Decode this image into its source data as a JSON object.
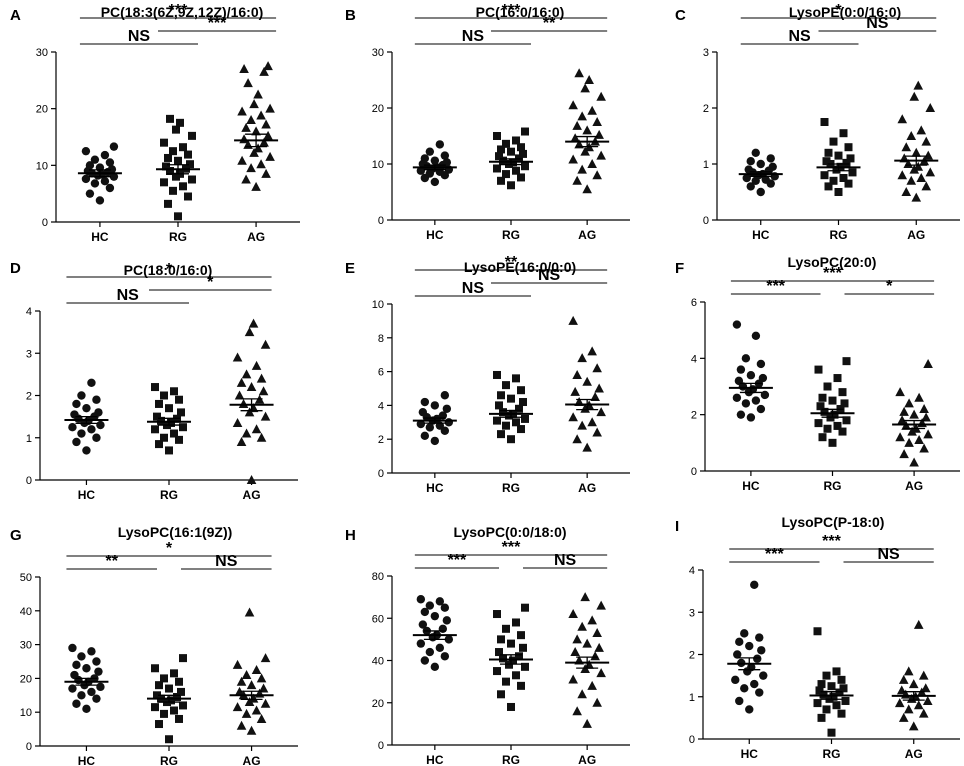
{
  "figure": {
    "categories": [
      "HC",
      "RG",
      "AG"
    ]
  },
  "chart_data": [
    {
      "panel": "A",
      "type": "scatter",
      "title": "PC(18:3(6Z,9Z,12Z)/16:0)",
      "categories": [
        "HC",
        "RG",
        "AG"
      ],
      "ylim": [
        0,
        30
      ],
      "yticks": [
        0,
        10,
        20,
        30
      ],
      "groups": [
        {
          "name": "HC",
          "marker": "circle",
          "mean": 8.6,
          "sem": 0.6,
          "values": [
            3.8,
            5.0,
            6.0,
            6.8,
            7.2,
            7.6,
            8.0,
            8.2,
            8.4,
            8.6,
            8.8,
            9.0,
            9.3,
            9.6,
            10.0,
            10.5,
            11.0,
            11.8,
            12.5,
            13.3
          ]
        },
        {
          "name": "RG",
          "marker": "square",
          "mean": 9.3,
          "sem": 0.8,
          "values": [
            1.0,
            3.2,
            4.5,
            5.5,
            6.3,
            7.0,
            7.5,
            8.0,
            8.5,
            9.0,
            9.4,
            9.8,
            10.2,
            10.8,
            11.3,
            11.9,
            12.5,
            13.2,
            14.0,
            15.2,
            16.3,
            17.5,
            18.2
          ]
        },
        {
          "name": "AG",
          "marker": "triangle",
          "mean": 14.4,
          "sem": 1.1,
          "values": [
            6.2,
            7.5,
            8.5,
            9.5,
            10.2,
            10.8,
            11.5,
            12.2,
            13.0,
            13.6,
            14.0,
            14.6,
            15.2,
            16.0,
            16.6,
            17.2,
            18.0,
            18.8,
            19.5,
            20.0,
            20.8,
            22.5,
            24.5,
            26.5,
            27.0,
            27.5
          ]
        }
      ],
      "comparisons": [
        {
          "from": "HC",
          "to": "RG",
          "label": "NS",
          "level": 1
        },
        {
          "from": "RG",
          "to": "AG",
          "label": "***",
          "level": 2
        },
        {
          "from": "HC",
          "to": "AG",
          "label": "***",
          "level": 3
        }
      ]
    },
    {
      "panel": "B",
      "type": "scatter",
      "title": "PC(16:0/16:0)",
      "categories": [
        "HC",
        "RG",
        "AG"
      ],
      "ylim": [
        0,
        30
      ],
      "yticks": [
        0,
        10,
        20,
        30
      ],
      "groups": [
        {
          "name": "HC",
          "marker": "circle",
          "mean": 9.4,
          "sem": 0.4,
          "values": [
            6.8,
            7.5,
            8.0,
            8.3,
            8.6,
            8.8,
            9.0,
            9.2,
            9.4,
            9.6,
            9.8,
            10.0,
            10.3,
            10.6,
            11.0,
            11.5,
            12.2,
            13.5
          ]
        },
        {
          "name": "RG",
          "marker": "square",
          "mean": 10.4,
          "sem": 0.5,
          "values": [
            6.2,
            7.0,
            7.6,
            8.2,
            8.8,
            9.2,
            9.6,
            10.0,
            10.3,
            10.6,
            11.0,
            11.4,
            11.8,
            12.2,
            12.6,
            13.0,
            13.6,
            14.2,
            15.0,
            15.8
          ]
        },
        {
          "name": "AG",
          "marker": "triangle",
          "mean": 14.0,
          "sem": 0.9,
          "values": [
            5.5,
            7.0,
            8.0,
            9.0,
            10.0,
            10.8,
            11.5,
            12.2,
            13.0,
            13.5,
            14.0,
            14.6,
            15.2,
            16.0,
            16.8,
            17.5,
            18.5,
            19.5,
            20.5,
            22.0,
            23.5,
            25.0,
            26.2
          ]
        }
      ],
      "comparisons": [
        {
          "from": "HC",
          "to": "RG",
          "label": "NS",
          "level": 1
        },
        {
          "from": "RG",
          "to": "AG",
          "label": "**",
          "level": 2
        },
        {
          "from": "HC",
          "to": "AG",
          "label": "***",
          "level": 3
        }
      ]
    },
    {
      "panel": "C",
      "type": "scatter",
      "title": "LysoPE(0:0/16:0)",
      "categories": [
        "HC",
        "RG",
        "AG"
      ],
      "ylim": [
        0,
        3
      ],
      "yticks": [
        0,
        1,
        2,
        3
      ],
      "groups": [
        {
          "name": "HC",
          "marker": "circle",
          "mean": 0.82,
          "sem": 0.04,
          "values": [
            0.5,
            0.6,
            0.65,
            0.7,
            0.72,
            0.75,
            0.78,
            0.8,
            0.82,
            0.85,
            0.88,
            0.9,
            0.95,
            1.0,
            1.05,
            1.1,
            1.2
          ]
        },
        {
          "name": "RG",
          "marker": "square",
          "mean": 0.94,
          "sem": 0.06,
          "values": [
            0.5,
            0.6,
            0.65,
            0.7,
            0.75,
            0.8,
            0.85,
            0.9,
            0.95,
            1.0,
            1.02,
            1.05,
            1.1,
            1.15,
            1.2,
            1.3,
            1.4,
            1.55,
            1.75
          ]
        },
        {
          "name": "AG",
          "marker": "triangle",
          "mean": 1.06,
          "sem": 0.08,
          "values": [
            0.4,
            0.5,
            0.6,
            0.7,
            0.75,
            0.8,
            0.85,
            0.9,
            0.95,
            1.0,
            1.05,
            1.1,
            1.15,
            1.2,
            1.3,
            1.4,
            1.5,
            1.6,
            1.8,
            2.0,
            2.2,
            2.4
          ]
        }
      ],
      "comparisons": [
        {
          "from": "HC",
          "to": "RG",
          "label": "NS",
          "level": 1
        },
        {
          "from": "RG",
          "to": "AG",
          "label": "NS",
          "level": 2
        },
        {
          "from": "HC",
          "to": "AG",
          "label": "*",
          "level": 3
        }
      ]
    },
    {
      "panel": "D",
      "type": "scatter",
      "title": "PC(18:0/16:0)",
      "categories": [
        "HC",
        "RG",
        "AG"
      ],
      "ylim": [
        0,
        4
      ],
      "yticks": [
        0,
        1,
        2,
        3,
        4
      ],
      "groups": [
        {
          "name": "HC",
          "marker": "circle",
          "mean": 1.42,
          "sem": 0.08,
          "values": [
            0.7,
            0.9,
            1.0,
            1.1,
            1.2,
            1.25,
            1.3,
            1.35,
            1.4,
            1.45,
            1.5,
            1.55,
            1.6,
            1.7,
            1.8,
            1.9,
            2.0,
            2.3
          ]
        },
        {
          "name": "RG",
          "marker": "square",
          "mean": 1.38,
          "sem": 0.08,
          "values": [
            0.7,
            0.85,
            0.95,
            1.0,
            1.1,
            1.2,
            1.25,
            1.3,
            1.35,
            1.4,
            1.45,
            1.5,
            1.6,
            1.7,
            1.8,
            1.9,
            2.0,
            2.1,
            2.2
          ]
        },
        {
          "name": "AG",
          "marker": "triangle",
          "mean": 1.78,
          "sem": 0.14,
          "values": [
            0.0,
            0.9,
            1.0,
            1.1,
            1.2,
            1.35,
            1.5,
            1.6,
            1.7,
            1.8,
            1.9,
            2.0,
            2.1,
            2.2,
            2.3,
            2.4,
            2.5,
            2.7,
            2.9,
            3.2,
            3.5,
            3.7
          ]
        }
      ],
      "comparisons": [
        {
          "from": "HC",
          "to": "RG",
          "label": "NS",
          "level": 1
        },
        {
          "from": "RG",
          "to": "AG",
          "label": "*",
          "level": 2
        },
        {
          "from": "HC",
          "to": "AG",
          "label": "*",
          "level": 3
        }
      ]
    },
    {
      "panel": "E",
      "type": "scatter",
      "title": "LysoPE(16:0/0:0)",
      "categories": [
        "HC",
        "RG",
        "AG"
      ],
      "ylim": [
        0,
        10
      ],
      "yticks": [
        0,
        2,
        4,
        6,
        8,
        10
      ],
      "groups": [
        {
          "name": "HC",
          "marker": "circle",
          "mean": 3.1,
          "sem": 0.15,
          "values": [
            1.9,
            2.2,
            2.5,
            2.7,
            2.8,
            2.9,
            3.0,
            3.1,
            3.2,
            3.3,
            3.4,
            3.6,
            3.8,
            4.0,
            4.2,
            4.6
          ]
        },
        {
          "name": "RG",
          "marker": "square",
          "mean": 3.5,
          "sem": 0.2,
          "values": [
            2.0,
            2.3,
            2.6,
            2.8,
            3.0,
            3.1,
            3.2,
            3.4,
            3.5,
            3.6,
            3.8,
            4.0,
            4.2,
            4.4,
            4.6,
            4.9,
            5.2,
            5.6,
            5.8
          ]
        },
        {
          "name": "AG",
          "marker": "triangle",
          "mean": 4.05,
          "sem": 0.3,
          "values": [
            1.5,
            2.0,
            2.4,
            2.8,
            3.0,
            3.3,
            3.6,
            3.8,
            4.0,
            4.2,
            4.5,
            4.8,
            5.0,
            5.4,
            5.8,
            6.2,
            6.8,
            7.2,
            9.0
          ]
        }
      ],
      "comparisons": [
        {
          "from": "HC",
          "to": "RG",
          "label": "NS",
          "level": 1
        },
        {
          "from": "RG",
          "to": "AG",
          "label": "NS",
          "level": 2
        },
        {
          "from": "HC",
          "to": "AG",
          "label": "**",
          "level": 3
        }
      ]
    },
    {
      "panel": "F",
      "type": "scatter",
      "title": "LysoPC(20:0)",
      "categories": [
        "HC",
        "RG",
        "AG"
      ],
      "ylim": [
        0,
        6
      ],
      "yticks": [
        0,
        2,
        4,
        6
      ],
      "groups": [
        {
          "name": "HC",
          "marker": "circle",
          "mean": 2.95,
          "sem": 0.16,
          "values": [
            1.9,
            2.0,
            2.2,
            2.4,
            2.5,
            2.6,
            2.7,
            2.8,
            2.9,
            3.0,
            3.1,
            3.2,
            3.3,
            3.4,
            3.6,
            3.8,
            4.0,
            4.8,
            5.2
          ]
        },
        {
          "name": "RG",
          "marker": "square",
          "mean": 2.05,
          "sem": 0.14,
          "values": [
            1.0,
            1.2,
            1.4,
            1.5,
            1.6,
            1.7,
            1.8,
            1.9,
            2.0,
            2.1,
            2.2,
            2.3,
            2.4,
            2.5,
            2.6,
            2.8,
            3.0,
            3.3,
            3.6,
            3.9
          ]
        },
        {
          "name": "AG",
          "marker": "triangle",
          "mean": 1.65,
          "sem": 0.14,
          "values": [
            0.3,
            0.6,
            0.8,
            1.0,
            1.1,
            1.2,
            1.3,
            1.4,
            1.5,
            1.6,
            1.7,
            1.8,
            1.9,
            2.0,
            2.1,
            2.2,
            2.4,
            2.6,
            2.8,
            3.8
          ]
        }
      ],
      "comparisons": [
        {
          "from": "HC",
          "to": "RG",
          "label": "***",
          "level": 1
        },
        {
          "from": "RG",
          "to": "AG",
          "label": "*",
          "level": 1
        },
        {
          "from": "HC",
          "to": "AG",
          "label": "***",
          "level": 2
        }
      ]
    },
    {
      "panel": "G",
      "type": "scatter",
      "title": "LysoPC(16:1(9Z))",
      "categories": [
        "HC",
        "RG",
        "AG"
      ],
      "ylim": [
        0,
        50
      ],
      "yticks": [
        0,
        10,
        20,
        30,
        40,
        50
      ],
      "groups": [
        {
          "name": "HC",
          "marker": "circle",
          "mean": 19.0,
          "sem": 1.0,
          "values": [
            11.0,
            12.5,
            14.0,
            15.0,
            16.0,
            17.0,
            17.5,
            18.0,
            19.0,
            19.5,
            20.0,
            21.0,
            22.0,
            23.0,
            24.0,
            25.0,
            26.5,
            28.0,
            29.0
          ]
        },
        {
          "name": "RG",
          "marker": "square",
          "mean": 14.0,
          "sem": 1.0,
          "values": [
            2.0,
            6.5,
            8.0,
            9.5,
            10.5,
            11.5,
            12.0,
            13.0,
            13.5,
            14.0,
            14.5,
            15.0,
            16.0,
            17.0,
            18.0,
            19.0,
            20.0,
            21.5,
            23.0,
            26.0
          ]
        },
        {
          "name": "AG",
          "marker": "triangle",
          "mean": 15.0,
          "sem": 1.2,
          "values": [
            4.5,
            6.0,
            8.0,
            9.5,
            10.5,
            11.5,
            12.5,
            13.0,
            14.0,
            15.0,
            15.5,
            16.0,
            17.0,
            18.0,
            19.0,
            20.0,
            21.0,
            22.5,
            24.0,
            26.0,
            39.5
          ]
        }
      ],
      "comparisons": [
        {
          "from": "HC",
          "to": "RG",
          "label": "**",
          "level": 1
        },
        {
          "from": "RG",
          "to": "AG",
          "label": "NS",
          "level": 1
        },
        {
          "from": "HC",
          "to": "AG",
          "label": "*",
          "level": 2
        }
      ]
    },
    {
      "panel": "H",
      "type": "scatter",
      "title": "LysoPC(0:0/18:0)",
      "categories": [
        "HC",
        "RG",
        "AG"
      ],
      "ylim": [
        0,
        80
      ],
      "yticks": [
        0,
        20,
        40,
        60,
        80
      ],
      "groups": [
        {
          "name": "HC",
          "marker": "circle",
          "mean": 52.0,
          "sem": 2.0,
          "values": [
            37.0,
            40.0,
            42.0,
            44.0,
            46.0,
            48.0,
            50.0,
            51.0,
            52.0,
            54.0,
            55.0,
            57.0,
            59.0,
            61.0,
            63.0,
            65.0,
            66.0,
            68.0,
            69.0
          ]
        },
        {
          "name": "RG",
          "marker": "square",
          "mean": 40.5,
          "sem": 2.2,
          "values": [
            18.0,
            24.0,
            28.0,
            30.0,
            33.0,
            35.0,
            37.0,
            38.0,
            40.0,
            41.0,
            42.0,
            44.0,
            46.0,
            48.0,
            50.0,
            52.0,
            55.0,
            58.0,
            62.0,
            65.0
          ]
        },
        {
          "name": "AG",
          "marker": "triangle",
          "mean": 39.0,
          "sem": 2.6,
          "values": [
            10.0,
            16.0,
            20.0,
            24.0,
            28.0,
            31.0,
            34.0,
            36.0,
            38.0,
            40.0,
            42.0,
            44.0,
            46.0,
            48.0,
            50.0,
            53.0,
            56.0,
            59.0,
            62.0,
            66.0,
            70.0
          ]
        }
      ],
      "comparisons": [
        {
          "from": "HC",
          "to": "RG",
          "label": "***",
          "level": 1
        },
        {
          "from": "RG",
          "to": "AG",
          "label": "NS",
          "level": 1
        },
        {
          "from": "HC",
          "to": "AG",
          "label": "***",
          "level": 2
        }
      ]
    },
    {
      "panel": "I",
      "type": "scatter",
      "title": "LysoPC(P-18:0)",
      "categories": [
        "HC",
        "RG",
        "AG"
      ],
      "ylim": [
        0,
        4
      ],
      "yticks": [
        0,
        1,
        2,
        3,
        4
      ],
      "groups": [
        {
          "name": "HC",
          "marker": "circle",
          "mean": 1.78,
          "sem": 0.14,
          "values": [
            0.7,
            0.9,
            1.1,
            1.2,
            1.3,
            1.4,
            1.5,
            1.6,
            1.7,
            1.8,
            1.9,
            2.0,
            2.1,
            2.2,
            2.3,
            2.4,
            2.5,
            3.65
          ]
        },
        {
          "name": "RG",
          "marker": "square",
          "mean": 1.03,
          "sem": 0.09,
          "values": [
            0.15,
            0.5,
            0.6,
            0.7,
            0.8,
            0.85,
            0.9,
            0.95,
            1.0,
            1.05,
            1.1,
            1.15,
            1.2,
            1.25,
            1.3,
            1.4,
            1.5,
            1.6,
            2.55
          ]
        },
        {
          "name": "AG",
          "marker": "triangle",
          "mean": 1.02,
          "sem": 0.1,
          "values": [
            0.3,
            0.5,
            0.6,
            0.7,
            0.8,
            0.85,
            0.9,
            0.95,
            1.0,
            1.05,
            1.1,
            1.15,
            1.2,
            1.3,
            1.4,
            1.5,
            1.6,
            2.7
          ]
        }
      ],
      "comparisons": [
        {
          "from": "HC",
          "to": "RG",
          "label": "***",
          "level": 1
        },
        {
          "from": "RG",
          "to": "AG",
          "label": "NS",
          "level": 1
        },
        {
          "from": "HC",
          "to": "AG",
          "label": "***",
          "level": 2
        }
      ]
    }
  ]
}
